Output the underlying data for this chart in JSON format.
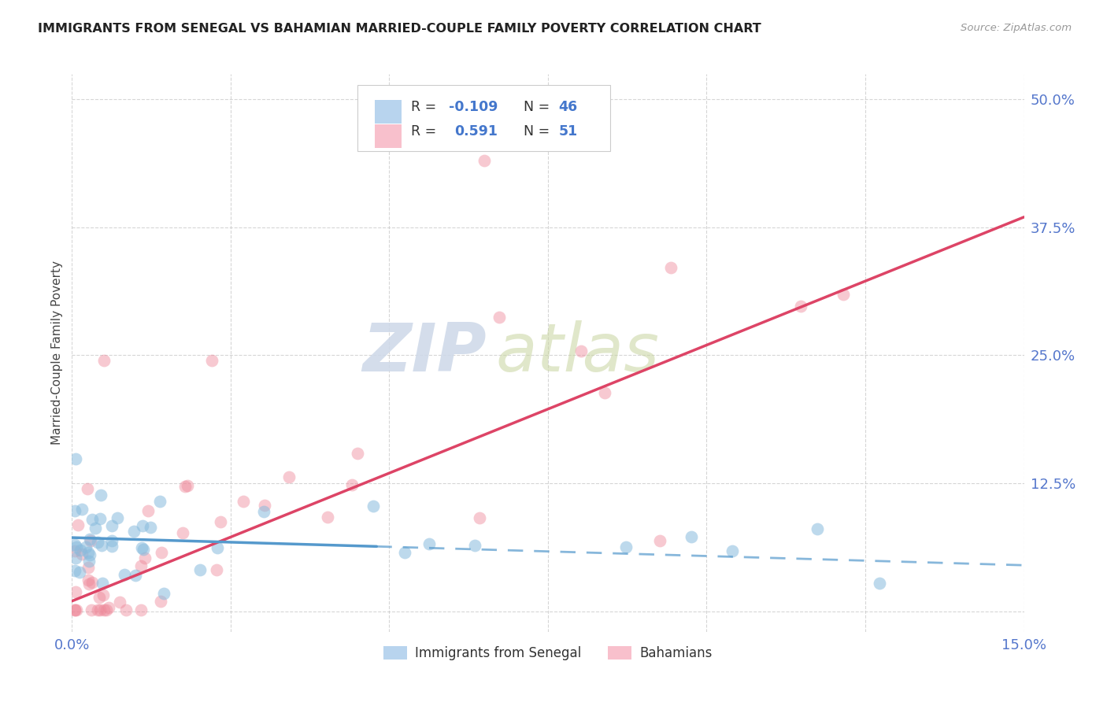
{
  "title": "IMMIGRANTS FROM SENEGAL VS BAHAMIAN MARRIED-COUPLE FAMILY POVERTY CORRELATION CHART",
  "source": "Source: ZipAtlas.com",
  "ylabel_label": "Married-Couple Family Poverty",
  "xlim": [
    0.0,
    0.15
  ],
  "ylim": [
    -0.02,
    0.525
  ],
  "xticks": [
    0.0,
    0.025,
    0.05,
    0.075,
    0.1,
    0.125,
    0.15
  ],
  "xticklabels": [
    "0.0%",
    "",
    "",
    "",
    "",
    "",
    "15.0%"
  ],
  "yticks": [
    0.0,
    0.125,
    0.25,
    0.375,
    0.5
  ],
  "yticklabels": [
    "",
    "12.5%",
    "25.0%",
    "37.5%",
    "50.0%"
  ],
  "legend1_color": "#b8d4ee",
  "legend2_color": "#f8c0cc",
  "scatter1_color": "#88bbdd",
  "scatter2_color": "#ee8899",
  "line1_color": "#5599cc",
  "line2_color": "#dd4466",
  "watermark_color": "#cdd8e8",
  "R1": -0.109,
  "N1": 46,
  "R2": 0.591,
  "N2": 51,
  "background_color": "#ffffff",
  "grid_color": "#cccccc",
  "title_color": "#222222",
  "tick_color": "#5577cc",
  "legend_text_color": "#333333",
  "legend_val_color": "#4477cc",
  "source_color": "#999999"
}
